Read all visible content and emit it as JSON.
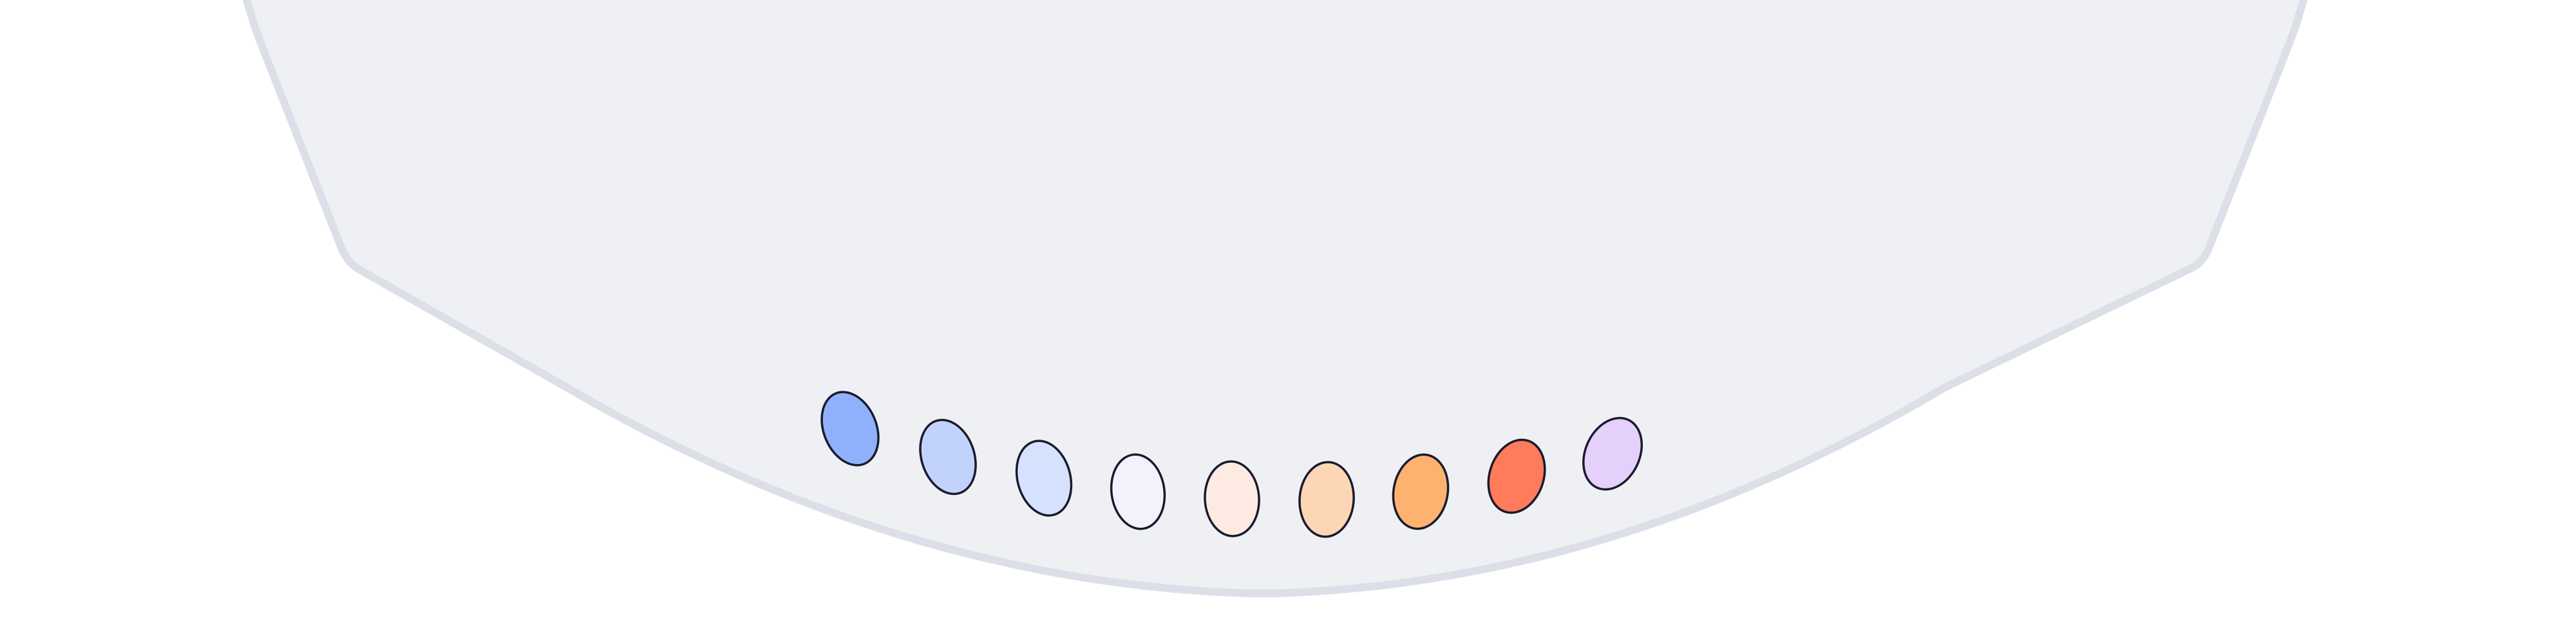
{
  "panel": {
    "fill": "#eff0f4",
    "border": "#dcdfe8"
  },
  "color_picker": {
    "swatch_stroke": "#1a1a2e",
    "swatches": [
      {
        "name": "blue-500-swatch",
        "color": "#8fb1fc"
      },
      {
        "name": "blue-300-swatch",
        "color": "#c1d3fd"
      },
      {
        "name": "blue-200-swatch",
        "color": "#d6e2fd"
      },
      {
        "name": "lavender-50-swatch",
        "color": "#f3f2fc"
      },
      {
        "name": "peach-50-swatch",
        "color": "#fdeae3"
      },
      {
        "name": "peach-200-swatch",
        "color": "#fdd7b5"
      },
      {
        "name": "orange-400-swatch",
        "color": "#fdb36f"
      },
      {
        "name": "coral-500-swatch",
        "color": "#fe7b5b"
      },
      {
        "name": "violet-100-swatch",
        "color": "#e5d0fc"
      }
    ]
  }
}
